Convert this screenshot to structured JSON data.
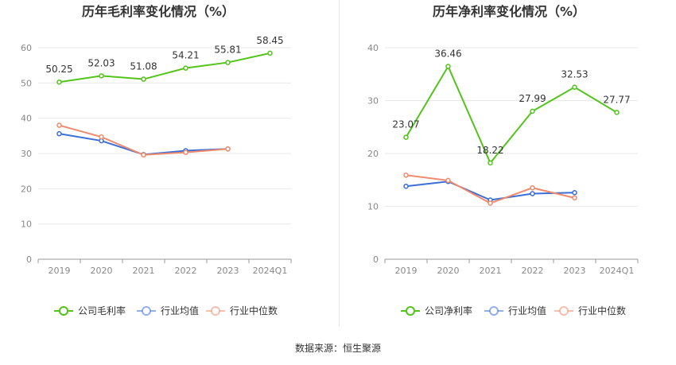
{
  "source_text": "数据来源：恒生聚源",
  "legend_color_company": "#52c41a",
  "legend_color_avg": "#3a6fd8",
  "legend_color_median": "#f08a6c",
  "chart_data": [
    {
      "type": "line",
      "title": "历年毛利率变化情况（%）",
      "categories": [
        "2019",
        "2020",
        "2021",
        "2022",
        "2023",
        "2024Q1"
      ],
      "ylim": [
        0,
        60
      ],
      "yticks": [
        "0",
        "10",
        "20",
        "30",
        "40",
        "50",
        "60"
      ],
      "grid": true,
      "legend_position": "bottom",
      "series": [
        {
          "name": "公司毛利率",
          "color": "#52c41a",
          "values": [
            50.25,
            52.03,
            51.08,
            54.21,
            55.81,
            58.45
          ],
          "labels": [
            "50.25",
            "52.03",
            "51.08",
            "54.21",
            "55.81",
            "58.45"
          ]
        },
        {
          "name": "行业均值",
          "color": "#3a6fd8",
          "values": [
            35.6,
            33.6,
            29.7,
            30.8,
            31.3,
            null
          ]
        },
        {
          "name": "行业中位数",
          "color": "#f08a6c",
          "values": [
            38.0,
            34.7,
            29.6,
            30.3,
            31.3,
            null
          ]
        }
      ]
    },
    {
      "type": "line",
      "title": "历年净利率变化情况（%）",
      "categories": [
        "2019",
        "2020",
        "2021",
        "2022",
        "2023",
        "2024Q1"
      ],
      "ylim": [
        0,
        40
      ],
      "yticks": [
        "0",
        "10",
        "20",
        "30",
        "40"
      ],
      "grid": true,
      "legend_position": "bottom",
      "series": [
        {
          "name": "公司净利率",
          "color": "#52c41a",
          "values": [
            23.07,
            36.46,
            18.22,
            27.99,
            32.53,
            27.77
          ],
          "labels": [
            "23.07",
            "36.46",
            "18.22",
            "27.99",
            "32.53",
            "27.77"
          ]
        },
        {
          "name": "行业均值",
          "color": "#3a6fd8",
          "values": [
            13.8,
            14.7,
            11.2,
            12.4,
            12.6,
            null
          ]
        },
        {
          "name": "行业中位数",
          "color": "#f08a6c",
          "values": [
            15.9,
            14.9,
            10.6,
            13.5,
            11.6,
            null
          ]
        }
      ]
    }
  ]
}
